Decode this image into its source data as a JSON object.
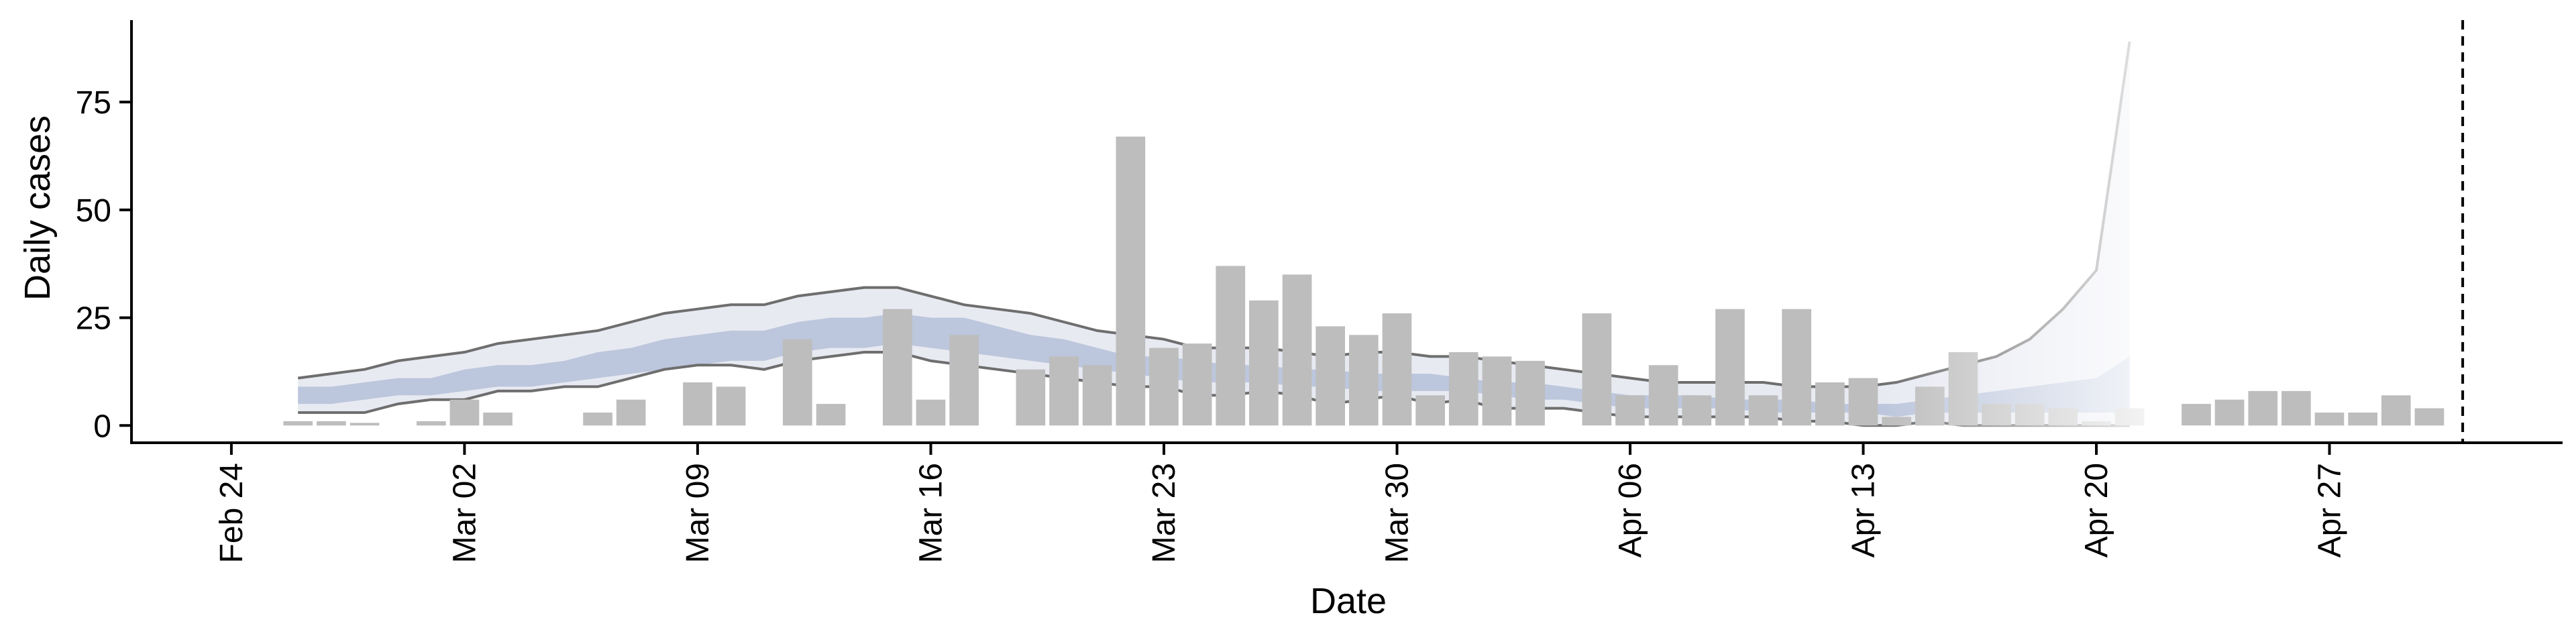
{
  "chart_data": {
    "type": "bar",
    "title": "",
    "xlabel": "Date",
    "ylabel": "Daily cases",
    "x_range": [
      "2020-02-21",
      "2020-05-04"
    ],
    "ylim": [
      -4,
      94
    ],
    "y_ticks": [
      0,
      25,
      50,
      75
    ],
    "x_ticks": [
      {
        "date": "2020-02-24",
        "label": "Feb 24"
      },
      {
        "date": "2020-03-02",
        "label": "Mar 02"
      },
      {
        "date": "2020-03-09",
        "label": "Mar 09"
      },
      {
        "date": "2020-03-16",
        "label": "Mar 16"
      },
      {
        "date": "2020-03-23",
        "label": "Mar 23"
      },
      {
        "date": "2020-03-30",
        "label": "Mar 30"
      },
      {
        "date": "2020-04-06",
        "label": "Apr 06"
      },
      {
        "date": "2020-04-13",
        "label": "Apr 13"
      },
      {
        "date": "2020-04-20",
        "label": "Apr 20"
      },
      {
        "date": "2020-04-27",
        "label": "Apr 27"
      }
    ],
    "grid": false,
    "legend": "none",
    "bars": {
      "color": "#bdbdbd",
      "dates": [
        "2020-02-26",
        "2020-02-27",
        "2020-02-28",
        "2020-03-01",
        "2020-03-02",
        "2020-03-03",
        "2020-03-06",
        "2020-03-07",
        "2020-03-09",
        "2020-03-10",
        "2020-03-12",
        "2020-03-13",
        "2020-03-15",
        "2020-03-16",
        "2020-03-17",
        "2020-03-19",
        "2020-03-20",
        "2020-03-21",
        "2020-03-22",
        "2020-03-23",
        "2020-03-24",
        "2020-03-25",
        "2020-03-26",
        "2020-03-27",
        "2020-03-28",
        "2020-03-29",
        "2020-03-30",
        "2020-03-31",
        "2020-04-01",
        "2020-04-02",
        "2020-04-03",
        "2020-04-05",
        "2020-04-06",
        "2020-04-07",
        "2020-04-08",
        "2020-04-09",
        "2020-04-10",
        "2020-04-11",
        "2020-04-12",
        "2020-04-13",
        "2020-04-14",
        "2020-04-15",
        "2020-04-16",
        "2020-04-17",
        "2020-04-18",
        "2020-04-19",
        "2020-04-20",
        "2020-04-21",
        "2020-04-23",
        "2020-04-24",
        "2020-04-25",
        "2020-04-26",
        "2020-04-27",
        "2020-04-28",
        "2020-04-29",
        "2020-04-30"
      ],
      "values": [
        1,
        1,
        0,
        1,
        6,
        3,
        3,
        6,
        10,
        9,
        20,
        5,
        27,
        6,
        21,
        13,
        16,
        14,
        67,
        18,
        19,
        37,
        29,
        35,
        23,
        21,
        26,
        7,
        17,
        16,
        15,
        26,
        7,
        14,
        7,
        27,
        7,
        27,
        10,
        11,
        2,
        9,
        17,
        5,
        5,
        4,
        1,
        4,
        5,
        6,
        8,
        8,
        3,
        3,
        7,
        4
      ]
    },
    "band_dates": [
      "2020-02-26",
      "2020-02-27",
      "2020-02-28",
      "2020-02-29",
      "2020-03-01",
      "2020-03-02",
      "2020-03-03",
      "2020-03-04",
      "2020-03-05",
      "2020-03-06",
      "2020-03-07",
      "2020-03-08",
      "2020-03-09",
      "2020-03-10",
      "2020-03-11",
      "2020-03-12",
      "2020-03-13",
      "2020-03-14",
      "2020-03-15",
      "2020-03-16",
      "2020-03-17",
      "2020-03-18",
      "2020-03-19",
      "2020-03-20",
      "2020-03-21",
      "2020-03-22",
      "2020-03-23",
      "2020-03-24",
      "2020-03-25",
      "2020-03-26",
      "2020-03-27",
      "2020-03-28",
      "2020-03-29",
      "2020-03-30",
      "2020-03-31",
      "2020-04-01",
      "2020-04-02",
      "2020-04-03",
      "2020-04-04",
      "2020-04-05",
      "2020-04-06",
      "2020-04-07",
      "2020-04-08",
      "2020-04-09",
      "2020-04-10",
      "2020-04-11",
      "2020-04-12",
      "2020-04-13",
      "2020-04-14",
      "2020-04-15",
      "2020-04-16",
      "2020-04-17",
      "2020-04-18",
      "2020-04-19",
      "2020-04-20",
      "2020-04-21"
    ],
    "outer_band": {
      "color": "#e8eaf2",
      "upper": [
        11,
        12,
        13,
        15,
        16,
        17,
        19,
        20,
        21,
        22,
        24,
        26,
        27,
        28,
        28,
        30,
        31,
        32,
        32,
        30,
        28,
        27,
        26,
        24,
        22,
        21,
        20,
        18,
        18,
        18,
        17,
        16,
        17,
        17,
        16,
        16,
        15,
        14,
        13,
        12,
        11,
        10,
        10,
        10,
        10,
        9,
        9,
        9,
        10,
        12,
        14,
        16,
        20,
        27,
        36,
        89
      ],
      "lower": [
        3,
        3,
        3,
        5,
        6,
        6,
        8,
        8,
        9,
        9,
        11,
        13,
        14,
        14,
        13,
        15,
        16,
        17,
        17,
        15,
        14,
        13,
        12,
        11,
        10,
        9,
        9,
        7,
        7,
        8,
        7,
        5,
        6,
        7,
        5,
        6,
        4,
        4,
        4,
        3,
        2,
        2,
        2,
        2,
        2,
        1,
        1,
        0,
        0,
        1,
        0,
        0,
        0,
        0,
        0,
        0
      ]
    },
    "inner_band": {
      "color": "#bcc6dc",
      "upper": [
        9,
        9,
        10,
        11,
        11,
        13,
        14,
        14,
        15,
        17,
        18,
        20,
        21,
        22,
        22,
        24,
        25,
        25,
        26,
        25,
        25,
        23,
        21,
        20,
        18,
        16,
        16,
        15,
        14,
        14,
        13,
        13,
        12,
        12,
        12,
        11,
        10,
        10,
        9,
        8,
        7,
        7,
        7,
        6,
        6,
        6,
        5,
        5,
        5,
        6,
        7,
        8,
        9,
        10,
        11,
        16
      ],
      "lower": [
        5,
        5,
        6,
        7,
        7,
        8,
        9,
        9,
        10,
        11,
        12,
        13,
        14,
        15,
        15,
        17,
        18,
        18,
        19,
        18,
        17,
        16,
        15,
        14,
        13,
        12,
        11,
        10,
        10,
        10,
        9,
        9,
        8,
        8,
        8,
        8,
        7,
        6,
        6,
        5,
        4,
        4,
        4,
        4,
        3,
        3,
        3,
        3,
        2,
        3,
        3,
        3,
        3,
        3,
        3,
        3
      ]
    },
    "forecast_from": "2020-04-14",
    "vline": {
      "date": "2020-05-01",
      "style": "dashed",
      "color": "#000000"
    }
  }
}
